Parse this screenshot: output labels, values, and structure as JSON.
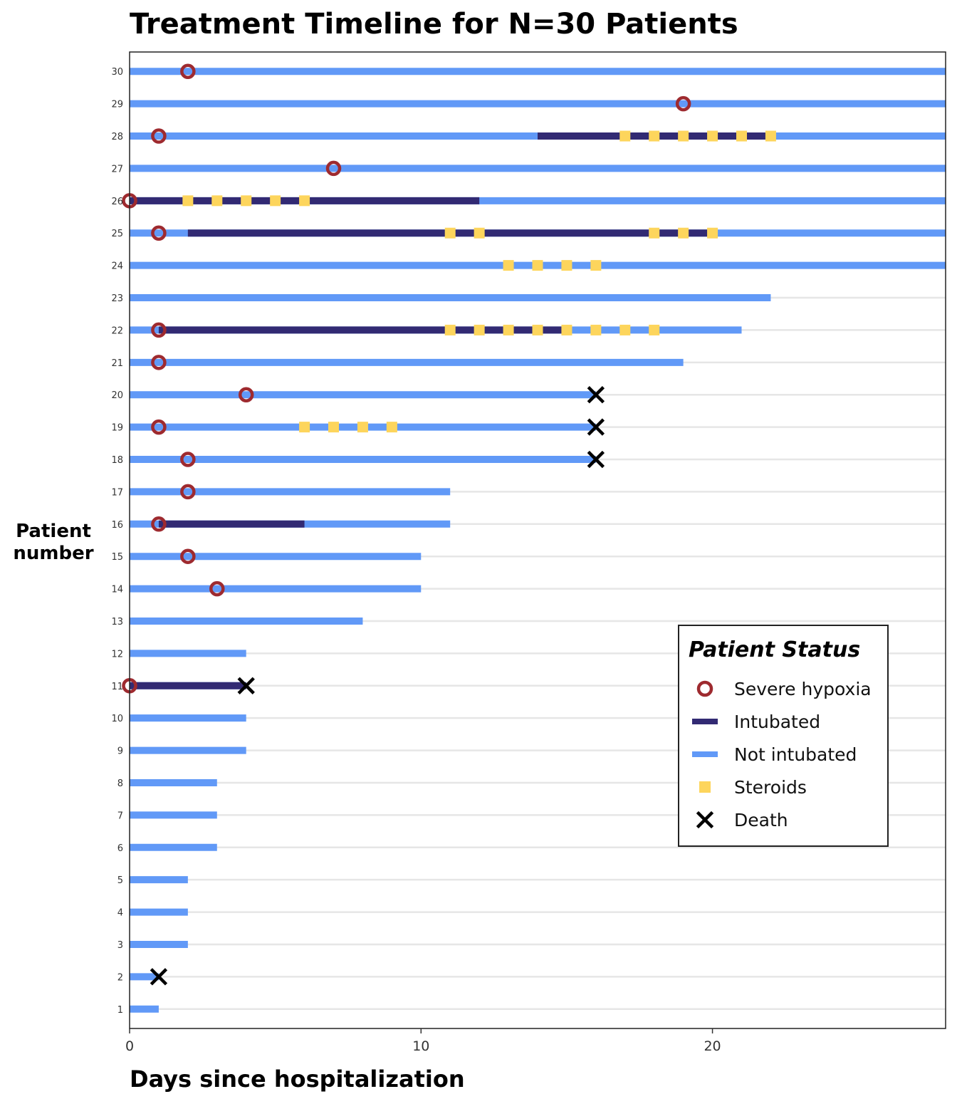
{
  "chart_data": {
    "type": "timeline",
    "title": "Treatment Timeline for N=30 Patients",
    "xlabel": "Days since hospitalization",
    "ylabel": [
      "Patient",
      "number"
    ],
    "xlim": [
      0,
      28
    ],
    "ylim": [
      0.4,
      30.6
    ],
    "x_ticks": [
      0,
      10,
      20
    ],
    "y_ticks": [
      1,
      2,
      3,
      4,
      5,
      6,
      7,
      8,
      9,
      10,
      11,
      12,
      13,
      14,
      15,
      16,
      17,
      18,
      19,
      20,
      21,
      22,
      23,
      24,
      25,
      26,
      27,
      28,
      29,
      30
    ],
    "grid": "horizontal",
    "colors": {
      "not_intubated": "#6199f7",
      "intubated": "#322a73",
      "hypoxia": "#9e2a2f",
      "steroids": "#fdd55c",
      "death": "#000000",
      "gridline": "#e6e6e6"
    },
    "legend": {
      "title": "Patient Status",
      "position": "right",
      "items": [
        {
          "key": "hypoxia",
          "label": "Severe hypoxia"
        },
        {
          "key": "intubated",
          "label": "Intubated"
        },
        {
          "key": "not_intubated",
          "label": "Not intubated"
        },
        {
          "key": "steroids",
          "label": "Steroids"
        },
        {
          "key": "death",
          "label": "Death"
        }
      ]
    },
    "patients": [
      {
        "id": 1,
        "end": 1
      },
      {
        "id": 2,
        "end": 1,
        "death": 1
      },
      {
        "id": 3,
        "end": 2
      },
      {
        "id": 4,
        "end": 2
      },
      {
        "id": 5,
        "end": 2
      },
      {
        "id": 6,
        "end": 3
      },
      {
        "id": 7,
        "end": 3
      },
      {
        "id": 8,
        "end": 3
      },
      {
        "id": 9,
        "end": 4
      },
      {
        "id": 10,
        "end": 4
      },
      {
        "id": 11,
        "end": 4,
        "hypoxia": 0,
        "intubated": [
          0,
          4
        ],
        "death": 4
      },
      {
        "id": 12,
        "end": 4
      },
      {
        "id": 13,
        "end": 8
      },
      {
        "id": 14,
        "end": 10,
        "hypoxia": 3
      },
      {
        "id": 15,
        "end": 10,
        "hypoxia": 2
      },
      {
        "id": 16,
        "end": 11,
        "hypoxia": 1,
        "intubated": [
          1,
          6
        ]
      },
      {
        "id": 17,
        "end": 11,
        "hypoxia": 2
      },
      {
        "id": 18,
        "end": 16,
        "hypoxia": 2,
        "death": 16
      },
      {
        "id": 19,
        "end": 16,
        "hypoxia": 1,
        "steroids": [
          6,
          7,
          8,
          9
        ],
        "death": 16
      },
      {
        "id": 20,
        "end": 16,
        "hypoxia": 4,
        "death": 16
      },
      {
        "id": 21,
        "end": 19,
        "hypoxia": 1
      },
      {
        "id": 22,
        "end": 21,
        "hypoxia": 1,
        "intubated": [
          1,
          15
        ],
        "steroids": [
          11,
          12,
          13,
          14,
          15,
          16,
          17,
          18
        ]
      },
      {
        "id": 23,
        "end": 22
      },
      {
        "id": 24,
        "end": 28,
        "steroids": [
          13,
          14,
          15,
          16
        ]
      },
      {
        "id": 25,
        "end": 28,
        "hypoxia": 1,
        "intubated": [
          2,
          20
        ],
        "steroids": [
          11,
          12,
          18,
          19,
          20
        ]
      },
      {
        "id": 26,
        "end": 28,
        "hypoxia": 0,
        "intubated": [
          0,
          12
        ],
        "steroids": [
          2,
          3,
          4,
          5,
          6
        ]
      },
      {
        "id": 27,
        "end": 28,
        "hypoxia": 7
      },
      {
        "id": 28,
        "end": 28,
        "hypoxia": 1,
        "intubated": [
          14,
          22
        ],
        "steroids": [
          17,
          18,
          19,
          20,
          21,
          22
        ]
      },
      {
        "id": 29,
        "end": 28,
        "hypoxia": 19
      },
      {
        "id": 30,
        "end": 28,
        "hypoxia": 2
      }
    ]
  }
}
